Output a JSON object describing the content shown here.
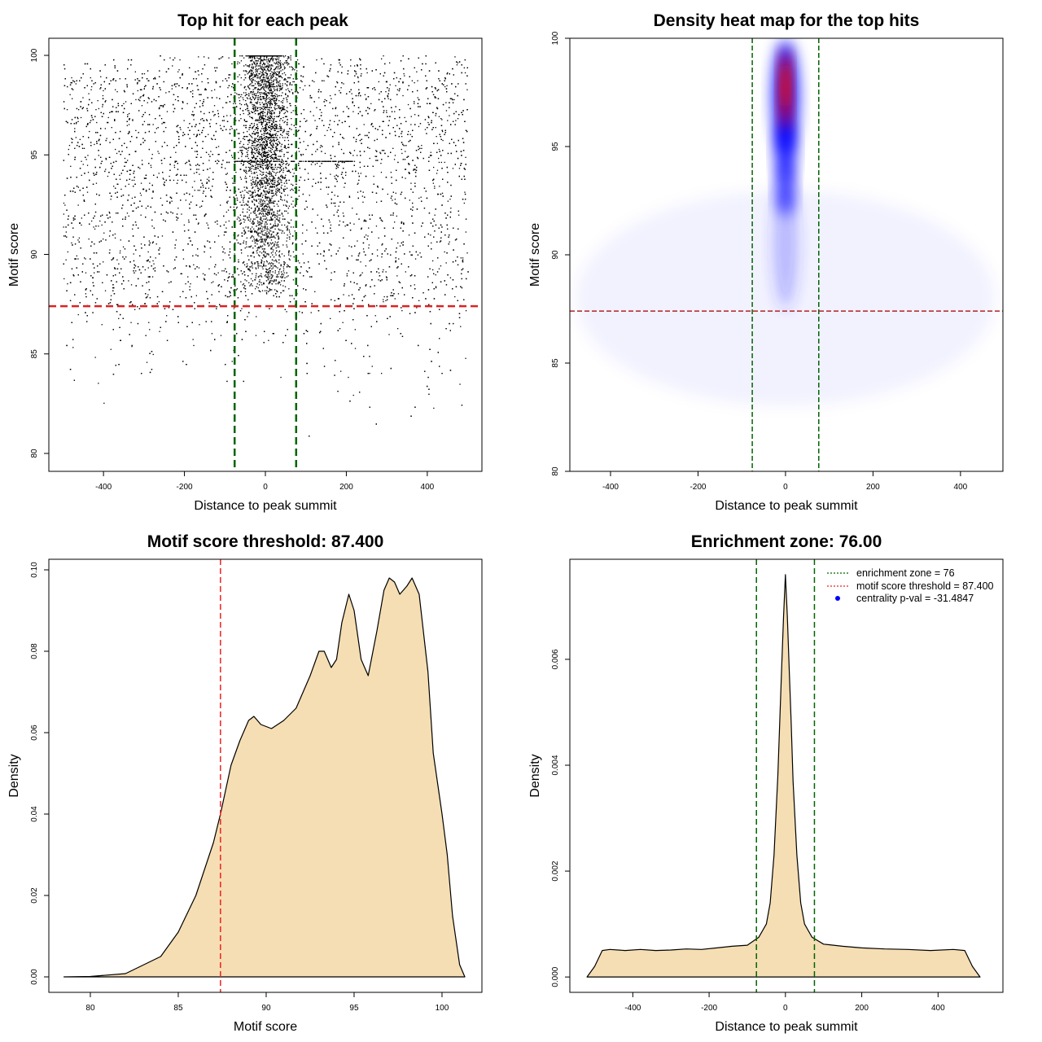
{
  "chart_data": [
    {
      "type": "scatter",
      "title": "Top hit for each peak",
      "xlabel": "Distance to peak summit",
      "ylabel": "Motif score",
      "xlim": [
        -535,
        535
      ],
      "ylim": [
        79.1,
        100.86
      ],
      "xticks": [
        -400,
        -200,
        0,
        200,
        400
      ],
      "yticks": [
        80,
        85,
        90,
        95,
        100
      ],
      "enrichment_zone": 76,
      "threshold": 87.4,
      "colors": {
        "points": "#000000",
        "zone": "#006400",
        "threshold": "#dd2222"
      },
      "points_model": {
        "seed": 7,
        "background_n": 6500,
        "center_n": 2600,
        "x_range": [
          -500,
          500
        ],
        "center_sd": 30
      }
    },
    {
      "type": "heatmap",
      "title": "Density heat map for the top hits",
      "xlabel": "Distance to peak summit",
      "ylabel": "Motif score",
      "xlim": [
        -493,
        497
      ],
      "ylim": [
        80,
        100
      ],
      "xticks": [
        -400,
        -200,
        0,
        200,
        400
      ],
      "yticks": [
        80,
        85,
        90,
        95,
        100
      ],
      "enrichment_zone": 76,
      "threshold": 87.4,
      "colors": {
        "low": "#ffffff",
        "mid": "#0000ff",
        "high": "#ff0000",
        "zone": "#006400",
        "threshold": "#b22222"
      },
      "density_blobs": [
        {
          "x": 0,
          "y": 88,
          "sx": 480,
          "sy": 5,
          "color": "#0000ff",
          "alpha": 0.05
        },
        {
          "x": 0,
          "y": 90.5,
          "sx": 28,
          "sy": 3,
          "color": "#3333ff",
          "alpha": 0.3
        },
        {
          "x": 0,
          "y": 93,
          "sx": 20,
          "sy": 1.2,
          "color": "#0000ff",
          "alpha": 0.75
        },
        {
          "x": 0,
          "y": 94.8,
          "sx": 22,
          "sy": 1.4,
          "color": "#0000ff",
          "alpha": 0.9
        },
        {
          "x": 0,
          "y": 97.3,
          "sx": 28,
          "sy": 2.6,
          "color": "#0000ff",
          "alpha": 1.0
        },
        {
          "x": 0,
          "y": 97.6,
          "sx": 13,
          "sy": 1.8,
          "color": "#ff0000",
          "alpha": 0.9
        },
        {
          "x": 0,
          "y": 97.8,
          "sx": 7,
          "sy": 1.0,
          "color": "#ff2200",
          "alpha": 1.0
        }
      ]
    },
    {
      "type": "area",
      "title": "Motif score threshold: 87.400",
      "xlabel": "Motif score",
      "ylabel": "Density",
      "xlim": [
        77.64,
        102.27
      ],
      "ylim": [
        -0.0038,
        0.1026
      ],
      "xticks": [
        80,
        85,
        90,
        95,
        100
      ],
      "yticks": [
        0.0,
        0.02,
        0.04,
        0.06,
        0.08,
        0.1
      ],
      "ytick_labels": [
        "0.00",
        "0.02",
        "0.04",
        "0.06",
        "0.08",
        "0.10"
      ],
      "threshold": 87.4,
      "colors": {
        "fill": "#f5deb3",
        "line": "#000000",
        "threshold": "#ee2222"
      },
      "x": [
        78.5,
        80,
        82,
        84,
        85,
        86,
        87,
        87.4,
        88,
        88.5,
        89,
        89.3,
        89.7,
        90.3,
        91,
        91.7,
        92.5,
        93,
        93.3,
        93.7,
        94,
        94.3,
        94.7,
        95,
        95.4,
        95.8,
        96.3,
        96.7,
        97,
        97.3,
        97.6,
        98,
        98.3,
        98.7,
        99.2,
        99.5,
        100,
        100.3,
        100.6,
        101,
        101.3
      ],
      "y": [
        0,
        0.0001,
        0.0008,
        0.005,
        0.011,
        0.02,
        0.033,
        0.04,
        0.052,
        0.058,
        0.063,
        0.064,
        0.062,
        0.061,
        0.063,
        0.066,
        0.074,
        0.08,
        0.08,
        0.076,
        0.078,
        0.087,
        0.094,
        0.09,
        0.078,
        0.074,
        0.085,
        0.095,
        0.098,
        0.097,
        0.094,
        0.096,
        0.098,
        0.094,
        0.075,
        0.055,
        0.04,
        0.03,
        0.015,
        0.003,
        0
      ]
    },
    {
      "type": "area",
      "title": "Enrichment zone: 76.00",
      "xlabel": "Distance to peak summit",
      "ylabel": "Density",
      "xlim": [
        -565,
        570
      ],
      "ylim": [
        -0.00029,
        0.00789
      ],
      "xticks": [
        -400,
        -200,
        0,
        200,
        400
      ],
      "yticks": [
        0.0,
        0.002,
        0.004,
        0.006
      ],
      "ytick_labels": [
        "0.000",
        "0.002",
        "0.004",
        "0.006"
      ],
      "enrichment_zone": 76,
      "colors": {
        "fill": "#f5deb3",
        "line": "#000000",
        "zone": "#006400"
      },
      "x": [
        -520,
        -500,
        -480,
        -460,
        -420,
        -380,
        -340,
        -300,
        -260,
        -220,
        -180,
        -140,
        -100,
        -70,
        -50,
        -40,
        -30,
        -20,
        -15,
        -10,
        -5,
        0,
        5,
        10,
        15,
        20,
        30,
        40,
        50,
        70,
        100,
        150,
        200,
        260,
        320,
        380,
        440,
        470,
        490,
        510
      ],
      "y": [
        0,
        0.0002,
        0.0005,
        0.00052,
        0.0005,
        0.00052,
        0.0005,
        0.00051,
        0.00053,
        0.00052,
        0.00055,
        0.00058,
        0.0006,
        0.00075,
        0.001,
        0.0014,
        0.0023,
        0.0038,
        0.0048,
        0.0058,
        0.0068,
        0.0076,
        0.0068,
        0.0058,
        0.0048,
        0.0037,
        0.0023,
        0.0014,
        0.001,
        0.00075,
        0.00062,
        0.00058,
        0.00055,
        0.00053,
        0.00052,
        0.0005,
        0.00052,
        0.0005,
        0.0002,
        0
      ],
      "legend": {
        "position": "top-right",
        "entries": [
          {
            "label": "enrichment zone = 76",
            "color": "#006400",
            "style": "dotted-line"
          },
          {
            "label": "motif score threshold = 87.400",
            "color": "#ee2222",
            "style": "dotted-line"
          },
          {
            "label": "centrality p-val = -31.4847",
            "color": "#0000ff",
            "style": "point"
          }
        ]
      }
    }
  ]
}
